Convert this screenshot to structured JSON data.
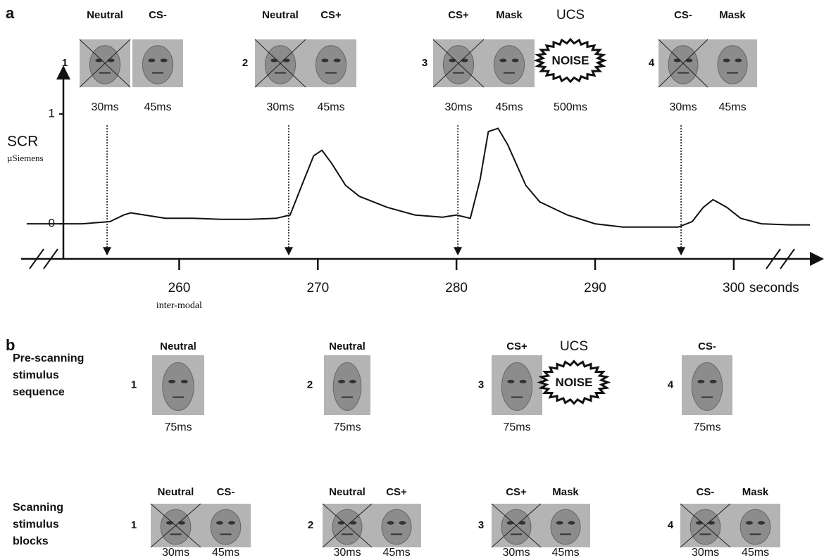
{
  "panel_a": {
    "label": "a",
    "trials": [
      {
        "number": "1",
        "stimuli": [
          {
            "label": "Neutral",
            "duration": "30ms"
          },
          {
            "label": "CS-",
            "duration": "45ms"
          }
        ]
      },
      {
        "number": "2",
        "stimuli": [
          {
            "label": "Neutral",
            "duration": "30ms"
          },
          {
            "label": "CS+",
            "duration": "45ms"
          }
        ]
      },
      {
        "number": "3",
        "stimuli": [
          {
            "label": "CS+",
            "duration": "30ms"
          },
          {
            "label": "Mask",
            "duration": "45ms"
          }
        ],
        "ucs": {
          "label": "UCS",
          "text": "NOISE",
          "duration": "500ms"
        }
      },
      {
        "number": "4",
        "stimuli": [
          {
            "label": "CS-",
            "duration": "30ms"
          },
          {
            "label": "Mask",
            "duration": "45ms"
          }
        ]
      }
    ]
  },
  "chart_data": {
    "type": "line",
    "y_label": "SCR",
    "y_unit": "µSiemens",
    "x_unit": "seconds",
    "x_note": "inter-modal",
    "xlim": [
      248.6,
      306
    ],
    "ylim": [
      -0.32,
      1.43
    ],
    "xticks": [
      260,
      270,
      280,
      290,
      300
    ],
    "yticks": [
      0,
      1
    ],
    "events": [
      254.8,
      267.9,
      280.1,
      296.2
    ],
    "color": "#111111",
    "x": [
      249,
      251,
      253,
      255,
      256,
      256.5,
      257.5,
      259,
      261,
      263,
      265,
      267,
      268,
      269,
      269.7,
      270.3,
      271,
      272,
      273,
      275,
      277,
      279,
      280,
      281,
      281.7,
      282.3,
      283,
      283.7,
      285,
      286,
      288,
      290,
      292,
      294,
      296,
      297,
      297.8,
      298.5,
      299.5,
      300.5,
      302,
      304,
      305.5
    ],
    "values": [
      0,
      0,
      0,
      0.02,
      0.08,
      0.1,
      0.08,
      0.05,
      0.05,
      0.04,
      0.04,
      0.05,
      0.08,
      0.4,
      0.62,
      0.67,
      0.55,
      0.35,
      0.25,
      0.15,
      0.08,
      0.06,
      0.08,
      0.05,
      0.4,
      0.84,
      0.87,
      0.72,
      0.35,
      0.2,
      0.08,
      0,
      -0.03,
      -0.03,
      -0.03,
      0.02,
      0.15,
      0.22,
      0.15,
      0.05,
      0,
      -0.01,
      -0.01
    ]
  },
  "panel_b": {
    "label": "b",
    "pre_scanning": {
      "title": [
        "Pre-scanning",
        "stimulus",
        "sequence"
      ],
      "trials": [
        {
          "number": "1",
          "stimuli": [
            {
              "label": "Neutral",
              "duration": "75ms"
            }
          ]
        },
        {
          "number": "2",
          "stimuli": [
            {
              "label": "Neutral",
              "duration": "75ms"
            }
          ]
        },
        {
          "number": "3",
          "stimuli": [
            {
              "label": "CS+",
              "duration": "75ms"
            }
          ],
          "ucs": {
            "label": "UCS",
            "text": "NOISE"
          }
        },
        {
          "number": "4",
          "stimuli": [
            {
              "label": "CS-",
              "duration": "75ms"
            }
          ]
        }
      ]
    },
    "scanning": {
      "title": [
        "Scanning",
        "stimulus",
        "blocks"
      ],
      "trials": [
        {
          "number": "1",
          "stimuli": [
            {
              "label": "Neutral",
              "duration": "30ms"
            },
            {
              "label": "CS-",
              "duration": "45ms"
            }
          ]
        },
        {
          "number": "2",
          "stimuli": [
            {
              "label": "Neutral",
              "duration": "30ms"
            },
            {
              "label": "CS+",
              "duration": "45ms"
            }
          ]
        },
        {
          "number": "3",
          "stimuli": [
            {
              "label": "CS+",
              "duration": "30ms"
            },
            {
              "label": "Mask",
              "duration": "45ms"
            }
          ]
        },
        {
          "number": "4",
          "stimuli": [
            {
              "label": "CS-",
              "duration": "30ms"
            },
            {
              "label": "Mask",
              "duration": "45ms"
            }
          ]
        }
      ]
    }
  }
}
